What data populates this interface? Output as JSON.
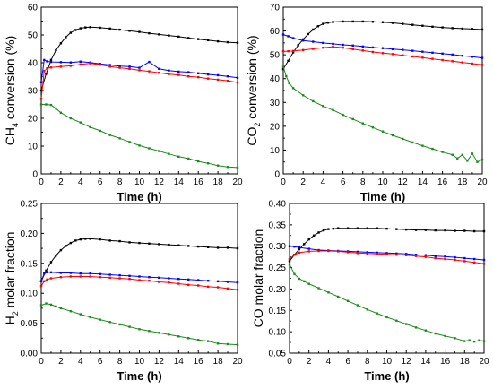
{
  "chart_data": [
    {
      "type": "line",
      "xlabel": "Time (h)",
      "ylabel": "CH4 conversion (%)",
      "ylabel_parts": [
        "CH",
        "4",
        " conversion (%)"
      ],
      "xlim": [
        0,
        20
      ],
      "ylim": [
        0,
        60
      ],
      "xticks": [
        0,
        2,
        4,
        6,
        8,
        10,
        12,
        14,
        16,
        18,
        20
      ],
      "yticks": [
        0,
        10,
        20,
        30,
        40,
        50,
        60
      ],
      "tick_labels_x": [
        "0",
        "2",
        "4",
        "6",
        "8",
        "10",
        "12",
        "14",
        "16",
        "18",
        "20"
      ],
      "tick_labels_y": [
        "0",
        "10",
        "20",
        "30",
        "40",
        "50",
        "60"
      ],
      "grid": false,
      "series": [
        {
          "color": "#000000",
          "x": [
            0,
            0.5,
            1,
            1.5,
            2,
            2.5,
            3,
            3.5,
            4,
            4.5,
            5,
            6,
            7,
            8,
            9,
            10,
            11,
            12,
            13,
            14,
            15,
            16,
            17,
            18,
            19,
            20
          ],
          "y": [
            30,
            36,
            41,
            44.5,
            47,
            49.2,
            50.8,
            51.8,
            52.4,
            52.7,
            52.8,
            52.6,
            52.3,
            51.9,
            51.5,
            51.1,
            50.6,
            50.2,
            49.8,
            49.4,
            48.9,
            48.5,
            48.1,
            47.7,
            47.4,
            47.2
          ]
        },
        {
          "color": "#0000ff",
          "x": [
            0,
            0.3,
            0.6,
            1,
            2,
            3,
            4,
            5,
            6,
            7,
            8,
            9,
            10,
            11,
            12,
            13,
            14,
            15,
            16,
            17,
            18,
            19,
            20
          ],
          "y": [
            33,
            41,
            40.5,
            40.3,
            40.2,
            40.1,
            40.4,
            40.1,
            39.6,
            39.2,
            38.8,
            38.6,
            38.2,
            40.3,
            37.8,
            37.2,
            36.8,
            36.6,
            36.2,
            35.8,
            35.5,
            35.1,
            34.6
          ]
        },
        {
          "color": "#ff0000",
          "x": [
            0,
            0.3,
            0.6,
            1,
            2,
            3,
            4,
            5,
            6,
            7,
            8,
            9,
            10,
            11,
            12,
            13,
            14,
            15,
            16,
            17,
            18,
            19,
            20
          ],
          "y": [
            27,
            37,
            38,
            38.3,
            38.6,
            38.9,
            39.4,
            39.8,
            39.3,
            38.6,
            38.2,
            37.8,
            37.3,
            36.9,
            36.4,
            35.9,
            35.6,
            35.1,
            34.8,
            34.3,
            33.9,
            33.5,
            32.9
          ]
        },
        {
          "color": "#1a8c1a",
          "x": [
            0,
            0.5,
            1,
            1.5,
            2,
            3,
            4,
            5,
            6,
            7,
            8,
            9,
            10,
            11,
            12,
            13,
            14,
            15,
            16,
            17,
            18,
            19,
            20
          ],
          "y": [
            25,
            25,
            24.8,
            23.5,
            22,
            20,
            18.5,
            16.8,
            15.5,
            14,
            12.8,
            11.5,
            10.2,
            9.2,
            8.2,
            7.2,
            6.2,
            5.5,
            4.5,
            3.8,
            3,
            2.5,
            2.3
          ]
        }
      ]
    },
    {
      "type": "line",
      "xlabel": "Time (h)",
      "ylabel": "CO2 conversion (%)",
      "ylabel_parts": [
        "CO",
        "2",
        " conversion (%)"
      ],
      "xlim": [
        0,
        20
      ],
      "ylim": [
        0,
        70
      ],
      "xticks": [
        0,
        2,
        4,
        6,
        8,
        10,
        12,
        14,
        16,
        18,
        20
      ],
      "yticks": [
        0,
        10,
        20,
        30,
        40,
        50,
        60,
        70
      ],
      "tick_labels_x": [
        "0",
        "2",
        "4",
        "6",
        "8",
        "10",
        "12",
        "14",
        "16",
        "18",
        "20"
      ],
      "tick_labels_y": [
        "0",
        "10",
        "20",
        "30",
        "40",
        "50",
        "60",
        "70"
      ],
      "grid": false,
      "series": [
        {
          "color": "#000000",
          "x": [
            0,
            0.5,
            1,
            1.5,
            2,
            2.5,
            3,
            3.5,
            4,
            4.5,
            5,
            6,
            7,
            8,
            9,
            10,
            11,
            12,
            13,
            14,
            15,
            16,
            17,
            18,
            19,
            20
          ],
          "y": [
            44,
            47.5,
            51,
            54,
            56.5,
            58.7,
            60.6,
            62,
            63,
            63.5,
            63.8,
            64,
            64,
            64,
            63.9,
            63.7,
            63.4,
            63,
            62.6,
            62.2,
            61.8,
            61.5,
            61.2,
            61,
            60.8,
            60.6
          ]
        },
        {
          "color": "#0000ff",
          "x": [
            0,
            0.5,
            1,
            2,
            3,
            4,
            5,
            6,
            7,
            8,
            9,
            10,
            11,
            12,
            13,
            14,
            15,
            16,
            17,
            18,
            19,
            20
          ],
          "y": [
            58.5,
            57.8,
            57,
            56,
            55.5,
            55,
            54.6,
            54.2,
            53.9,
            53.5,
            53.1,
            52.8,
            52.4,
            52.1,
            51.7,
            51.3,
            50.9,
            50.5,
            50.1,
            49.6,
            49.2,
            48.7
          ]
        },
        {
          "color": "#ff0000",
          "x": [
            0,
            0.5,
            1,
            2,
            3,
            4,
            5,
            6,
            7,
            8,
            9,
            10,
            11,
            12,
            13,
            14,
            15,
            16,
            17,
            18,
            19,
            20
          ],
          "y": [
            51.5,
            51.5,
            51.6,
            52,
            52.5,
            53,
            53.4,
            53,
            52.4,
            51.8,
            51.2,
            50.7,
            50.3,
            49.8,
            49.3,
            48.8,
            48.3,
            47.8,
            47.3,
            46.8,
            46.3,
            45.8
          ]
        },
        {
          "color": "#1a8c1a",
          "x": [
            0,
            0.3,
            0.6,
            1,
            2,
            3,
            4,
            5,
            6,
            7,
            8,
            9,
            10,
            11,
            12,
            13,
            14,
            15,
            16,
            17,
            17.5,
            18,
            18.5,
            19,
            19.5,
            20
          ],
          "y": [
            45,
            41,
            38,
            36,
            33,
            30.5,
            28.5,
            26.8,
            24.8,
            23,
            21.2,
            19.5,
            17.8,
            16.2,
            14.7,
            13.2,
            11.8,
            10.5,
            9.2,
            8,
            6.5,
            8,
            5.5,
            8.5,
            5,
            6
          ]
        }
      ]
    },
    {
      "type": "line",
      "xlabel": "Time (h)",
      "ylabel": "H2 molar fraction",
      "ylabel_parts": [
        "H",
        "2",
        " molar fraction"
      ],
      "xlim": [
        0,
        20
      ],
      "ylim": [
        0,
        0.25
      ],
      "xticks": [
        0,
        2,
        4,
        6,
        8,
        10,
        12,
        14,
        16,
        18,
        20
      ],
      "yticks": [
        0,
        0.05,
        0.1,
        0.15,
        0.2,
        0.25
      ],
      "tick_labels_x": [
        "0",
        "2",
        "4",
        "6",
        "8",
        "10",
        "12",
        "14",
        "16",
        "18",
        "20"
      ],
      "tick_labels_y": [
        "0.00",
        "0.05",
        "0.10",
        "0.15",
        "0.20",
        "0.25"
      ],
      "grid": false,
      "series": [
        {
          "color": "#000000",
          "x": [
            0,
            0.5,
            1,
            1.5,
            2,
            2.5,
            3,
            3.5,
            4,
            4.5,
            5,
            6,
            7,
            8,
            9,
            10,
            11,
            12,
            13,
            14,
            15,
            16,
            17,
            18,
            19,
            20
          ],
          "y": [
            0.12,
            0.138,
            0.152,
            0.163,
            0.172,
            0.179,
            0.184,
            0.188,
            0.19,
            0.191,
            0.191,
            0.19,
            0.188,
            0.187,
            0.185,
            0.184,
            0.183,
            0.182,
            0.181,
            0.18,
            0.179,
            0.178,
            0.177,
            0.176,
            0.176,
            0.175
          ]
        },
        {
          "color": "#0000ff",
          "x": [
            0,
            0.3,
            0.6,
            1,
            2,
            3,
            4,
            5,
            6,
            7,
            8,
            9,
            10,
            11,
            12,
            13,
            14,
            15,
            16,
            17,
            18,
            19,
            20
          ],
          "y": [
            0.12,
            0.133,
            0.135,
            0.135,
            0.134,
            0.134,
            0.133,
            0.133,
            0.132,
            0.131,
            0.13,
            0.129,
            0.128,
            0.127,
            0.126,
            0.125,
            0.124,
            0.123,
            0.122,
            0.121,
            0.12,
            0.119,
            0.118
          ]
        },
        {
          "color": "#ff0000",
          "x": [
            0,
            0.3,
            0.6,
            1,
            2,
            3,
            4,
            5,
            6,
            7,
            8,
            9,
            10,
            11,
            12,
            13,
            14,
            15,
            16,
            17,
            18,
            19,
            20
          ],
          "y": [
            0.112,
            0.12,
            0.123,
            0.125,
            0.127,
            0.128,
            0.128,
            0.128,
            0.127,
            0.126,
            0.125,
            0.124,
            0.122,
            0.121,
            0.119,
            0.118,
            0.116,
            0.114,
            0.113,
            0.111,
            0.11,
            0.108,
            0.106
          ]
        },
        {
          "color": "#1a8c1a",
          "x": [
            0,
            0.5,
            1,
            1.5,
            2,
            3,
            4,
            5,
            6,
            7,
            8,
            9,
            10,
            11,
            12,
            13,
            14,
            15,
            16,
            17,
            18,
            19,
            20
          ],
          "y": [
            0.08,
            0.083,
            0.081,
            0.078,
            0.075,
            0.07,
            0.065,
            0.06,
            0.056,
            0.052,
            0.048,
            0.044,
            0.04,
            0.037,
            0.034,
            0.031,
            0.028,
            0.025,
            0.022,
            0.02,
            0.016,
            0.015,
            0.014
          ]
        }
      ]
    },
    {
      "type": "line",
      "xlabel": "Time (h)",
      "ylabel": "CO molar fraction",
      "ylabel_parts": [
        "CO molar fraction"
      ],
      "xlim": [
        0,
        20
      ],
      "ylim": [
        0.05,
        0.4
      ],
      "xticks": [
        0,
        2,
        4,
        6,
        8,
        10,
        12,
        14,
        16,
        18,
        20
      ],
      "yticks": [
        0.05,
        0.1,
        0.15,
        0.2,
        0.25,
        0.3,
        0.35,
        0.4
      ],
      "tick_labels_x": [
        "0",
        "2",
        "4",
        "6",
        "8",
        "10",
        "12",
        "14",
        "16",
        "18",
        "20"
      ],
      "tick_labels_y": [
        "0.05",
        "0.10",
        "0.15",
        "0.20",
        "0.25",
        "0.30",
        "0.35",
        "0.40"
      ],
      "grid": false,
      "series": [
        {
          "color": "#000000",
          "x": [
            0,
            0.5,
            1,
            1.5,
            2,
            2.5,
            3,
            3.5,
            4,
            4.5,
            5,
            6,
            7,
            8,
            9,
            10,
            11,
            12,
            13,
            14,
            15,
            16,
            17,
            18,
            19,
            20
          ],
          "y": [
            0.265,
            0.28,
            0.293,
            0.305,
            0.316,
            0.325,
            0.332,
            0.337,
            0.34,
            0.341,
            0.342,
            0.342,
            0.342,
            0.342,
            0.342,
            0.341,
            0.34,
            0.339,
            0.338,
            0.338,
            0.337,
            0.337,
            0.336,
            0.336,
            0.335,
            0.335
          ]
        },
        {
          "color": "#0000ff",
          "x": [
            0,
            0.5,
            1,
            2,
            3,
            4,
            5,
            6,
            7,
            8,
            9,
            10,
            11,
            12,
            13,
            14,
            15,
            16,
            17,
            18,
            19,
            20
          ],
          "y": [
            0.3,
            0.299,
            0.297,
            0.294,
            0.291,
            0.29,
            0.289,
            0.288,
            0.287,
            0.286,
            0.285,
            0.284,
            0.283,
            0.282,
            0.28,
            0.279,
            0.277,
            0.276,
            0.274,
            0.272,
            0.27,
            0.268
          ]
        },
        {
          "color": "#ff0000",
          "x": [
            0,
            0.5,
            1,
            2,
            3,
            4,
            5,
            6,
            7,
            8,
            9,
            10,
            11,
            12,
            13,
            14,
            15,
            16,
            17,
            18,
            19,
            20
          ],
          "y": [
            0.27,
            0.28,
            0.285,
            0.288,
            0.289,
            0.289,
            0.288,
            0.286,
            0.284,
            0.283,
            0.282,
            0.281,
            0.28,
            0.279,
            0.277,
            0.275,
            0.272,
            0.27,
            0.268,
            0.265,
            0.262,
            0.259
          ]
        },
        {
          "color": "#1a8c1a",
          "x": [
            0,
            0.5,
            1,
            1.5,
            2,
            3,
            4,
            5,
            6,
            7,
            8,
            9,
            10,
            11,
            12,
            13,
            14,
            15,
            16,
            17,
            18,
            18.5,
            19,
            19.5,
            20
          ],
          "y": [
            0.258,
            0.235,
            0.224,
            0.218,
            0.212,
            0.202,
            0.192,
            0.182,
            0.172,
            0.162,
            0.152,
            0.143,
            0.134,
            0.126,
            0.118,
            0.11,
            0.103,
            0.096,
            0.09,
            0.085,
            0.078,
            0.08,
            0.077,
            0.08,
            0.078
          ]
        }
      ]
    }
  ]
}
